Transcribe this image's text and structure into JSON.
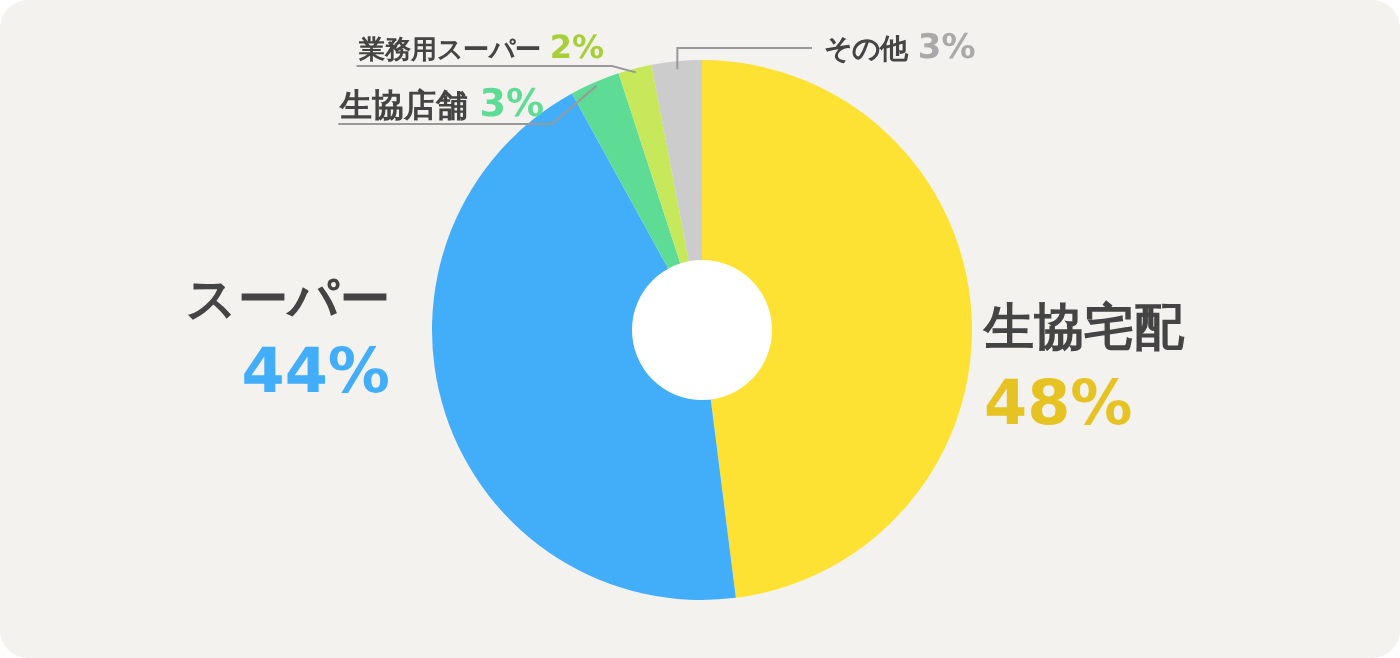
{
  "chart_data": {
    "type": "donut",
    "categories": [
      "生協宅配",
      "スーパー",
      "生協店舗",
      "業務用スーパー",
      "その他"
    ],
    "values": [
      48,
      44,
      3,
      2,
      3
    ],
    "colors": [
      "#fde233",
      "#42adf9",
      "#5edc95",
      "#c6e85a",
      "#cccccc"
    ],
    "value_labels": [
      "48%",
      "44%",
      "3%",
      "2%",
      "3%"
    ]
  }
}
